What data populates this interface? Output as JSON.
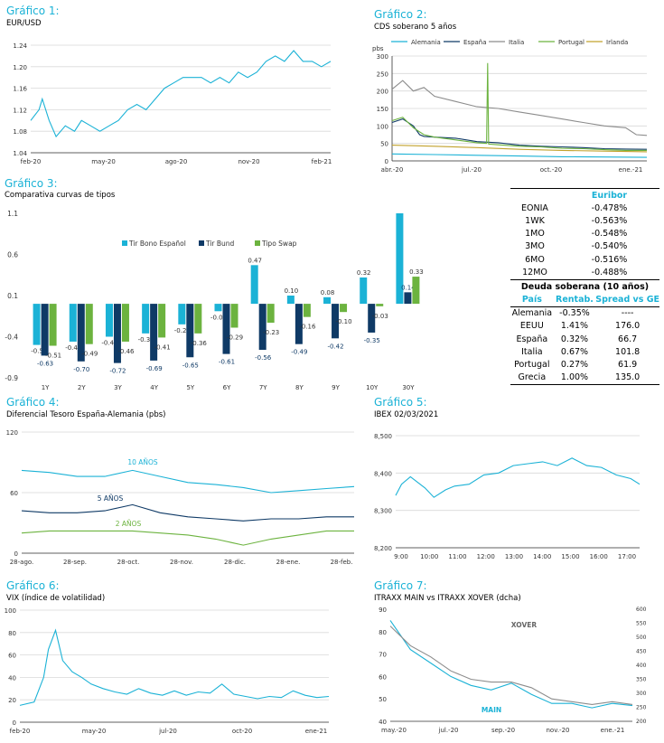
{
  "colors": {
    "accent": "#1bb2d6",
    "navy": "#0f3a66",
    "green": "#6cb33f",
    "grid": "#d9d9d9",
    "axis": "#333333"
  },
  "g1": {
    "title": "Gráfico 1:",
    "subtitle": "EUR/USD"
  },
  "g2": {
    "title": "Gráfico 2:",
    "subtitle": "CDS soberano 5 años",
    "unit": "pbs"
  },
  "g3": {
    "title": "Gráfico 3:",
    "subtitle": "Comparativa curvas de tipos"
  },
  "g4": {
    "title": "Gráfico 4:",
    "subtitle": "Diferencial Tesoro España-Alemania (pbs)"
  },
  "g5": {
    "title": "Gráfico 5:",
    "subtitle": "IBEX 02/03/2021"
  },
  "g6": {
    "title": "Gráfico 6:",
    "subtitle": "VIX (índice de volatilidad)"
  },
  "g7": {
    "title": "Gráfico 7:",
    "subtitle": "ITRAXX MAIN vs ITRAXX XOVER (dcha)"
  },
  "table": {
    "euribor_header": "Euribor",
    "euribor": [
      {
        "label": "EONIA",
        "value": "-0.478%"
      },
      {
        "label": "1WK",
        "value": "-0.563%"
      },
      {
        "label": "1MO",
        "value": "-0.548%"
      },
      {
        "label": "3MO",
        "value": "-0.540%"
      },
      {
        "label": "6MO",
        "value": "-0.516%"
      },
      {
        "label": "12MO",
        "value": "-0.488%"
      }
    ],
    "deuda_header": "Deuda soberana (10 años)",
    "cols": [
      "País",
      "Rentab.",
      "Spread vs GE"
    ],
    "deuda": [
      {
        "pais": "Alemania",
        "rent": "-0.35%",
        "spread": "----"
      },
      {
        "pais": "EEUU",
        "rent": "1.41%",
        "spread": "176.0"
      },
      {
        "pais": "España",
        "rent": "0.32%",
        "spread": "66.7"
      },
      {
        "pais": "Italia",
        "rent": "0.67%",
        "spread": "101.8"
      },
      {
        "pais": "Portugal",
        "rent": "0.27%",
        "spread": "61.9"
      },
      {
        "pais": "Grecia",
        "rent": "1.00%",
        "spread": "135.0"
      }
    ]
  },
  "chart_data": [
    {
      "id": "g1",
      "type": "line",
      "title": "EUR/USD",
      "xticks": [
        "feb-20",
        "may-20",
        "ago-20",
        "nov-20",
        "feb-21"
      ],
      "ylim": [
        1.04,
        1.24
      ],
      "yticks": [
        "1.04",
        "1.08",
        "1.12",
        "1.16",
        "1.20",
        "1.24"
      ],
      "series": [
        {
          "color": "#1bb2d6",
          "x": [
            0,
            1.8,
            2.5,
            4,
            5.5,
            7.5,
            9.5,
            11,
            13,
            15,
            17,
            19,
            21,
            23,
            25,
            27,
            29,
            31,
            33,
            35,
            37,
            39,
            41,
            43,
            45,
            47,
            49,
            51,
            53,
            55,
            57,
            59,
            61,
            63,
            65
          ],
          "values": [
            1.1,
            1.12,
            1.14,
            1.1,
            1.07,
            1.09,
            1.08,
            1.1,
            1.09,
            1.08,
            1.09,
            1.1,
            1.12,
            1.13,
            1.12,
            1.14,
            1.16,
            1.17,
            1.18,
            1.18,
            1.18,
            1.17,
            1.18,
            1.17,
            1.19,
            1.18,
            1.19,
            1.21,
            1.22,
            1.21,
            1.23,
            1.21,
            1.21,
            1.2,
            1.21
          ]
        }
      ]
    },
    {
      "id": "g2",
      "type": "line",
      "title": "CDS soberano 5 años",
      "xticks": [
        "abr.-20",
        "jul.-20",
        "oct.-20",
        "ene.-21"
      ],
      "ylim": [
        0,
        300
      ],
      "yticks": [
        "0",
        "50",
        "100",
        "150",
        "200",
        "250",
        "300"
      ],
      "series": [
        {
          "name": "Alemania",
          "color": "#1bb2d6",
          "x": [
            0,
            2,
            4,
            6,
            8,
            10,
            12
          ],
          "values": [
            20,
            18,
            16,
            14,
            12,
            11,
            10
          ]
        },
        {
          "name": "España",
          "color": "#0f3a66",
          "x": [
            0,
            0.5,
            1,
            1.3,
            1.5,
            2,
            3,
            4,
            5,
            6,
            7,
            8,
            9,
            10,
            11,
            12
          ],
          "values": [
            110,
            120,
            100,
            75,
            70,
            68,
            65,
            55,
            52,
            45,
            42,
            40,
            38,
            35,
            34,
            33
          ]
        },
        {
          "name": "Italia",
          "color": "#8c8c8c",
          "x": [
            0,
            0.5,
            1,
            1.5,
            2,
            3,
            4,
            5,
            6,
            7,
            8,
            9,
            10,
            11,
            11.5,
            12
          ],
          "values": [
            205,
            230,
            200,
            210,
            185,
            170,
            155,
            150,
            140,
            130,
            120,
            110,
            100,
            95,
            75,
            73
          ]
        },
        {
          "name": "Portugal",
          "color": "#6cb33f",
          "x": [
            0,
            0.5,
            1,
            1.5,
            2,
            3,
            4,
            4.45,
            4.5,
            4.55,
            5,
            6,
            7,
            8,
            9,
            10,
            11,
            12
          ],
          "values": [
            115,
            125,
            95,
            75,
            68,
            60,
            52,
            50,
            280,
            48,
            46,
            42,
            40,
            36,
            35,
            32,
            30,
            30
          ]
        },
        {
          "name": "Irlanda",
          "color": "#c2a22c",
          "x": [
            0,
            2,
            4,
            6,
            8,
            10,
            12
          ],
          "values": [
            45,
            42,
            38,
            33,
            30,
            28,
            26
          ]
        }
      ]
    },
    {
      "id": "g3",
      "type": "bar",
      "title": "Comparativa curvas de tipos",
      "categories": [
        "1Y",
        "2Y",
        "3Y",
        "4Y",
        "5Y",
        "6Y",
        "7Y",
        "8Y",
        "9Y",
        "10Y",
        "30Y"
      ],
      "ylim": [
        -0.9,
        1.1
      ],
      "yticks": [
        "-0.9",
        "-0.4",
        "0.1",
        "0.6",
        "1.1"
      ],
      "series": [
        {
          "name": "Tir Bono Español",
          "color": "#1bb2d6",
          "values": [
            -0.5,
            -0.46,
            -0.4,
            -0.36,
            -0.25,
            -0.09,
            0.47,
            0.1,
            0.08,
            0.32,
            1.1
          ]
        },
        {
          "name": "Tir Bund",
          "color": "#0f3a66",
          "values": [
            -0.63,
            -0.7,
            -0.72,
            -0.69,
            -0.65,
            -0.61,
            -0.56,
            -0.49,
            -0.42,
            -0.35,
            0.14
          ]
        },
        {
          "name": "Tipo Swap",
          "color": "#6cb33f",
          "values": [
            -0.51,
            -0.49,
            -0.46,
            -0.41,
            -0.36,
            -0.29,
            -0.23,
            -0.16,
            -0.1,
            -0.03,
            0.33
          ]
        }
      ],
      "labels": {
        "esp": [
          "-0.5",
          "-0.46",
          "-0.40",
          "-0.36",
          "-0.25",
          "-0.09",
          "0.47",
          "0.10",
          "0.08",
          "0.32",
          ""
        ],
        "bund": [
          "-0.63",
          "-0.70",
          "-0.72",
          "-0.69",
          "-0.65",
          "-0.61",
          "-0.56",
          "-0.49",
          "-0.42",
          "-0.35",
          "0.14"
        ],
        "swap": [
          "-0.51",
          "-0.49",
          "-0.46",
          "-0.41",
          "-0.36",
          "-0.29",
          "-0.23",
          "-0.16",
          "-0.10",
          "-0.03",
          "0.33"
        ]
      }
    },
    {
      "id": "g4",
      "type": "line",
      "title": "Diferencial Tesoro España-Alemania (pbs)",
      "xticks": [
        "28-ago.",
        "28-sep.",
        "28-oct.",
        "28-nov.",
        "28-dic.",
        "28-ene.",
        "28-feb."
      ],
      "ylim": [
        0,
        120
      ],
      "yticks": [
        "0",
        "60",
        "120"
      ],
      "series": [
        {
          "name": "10 AÑOS",
          "color": "#1bb2d6",
          "x": [
            0,
            0.5,
            1,
            1.5,
            2,
            2.5,
            3,
            3.5,
            4,
            4.5,
            5,
            5.5,
            6
          ],
          "values": [
            82,
            80,
            76,
            76,
            82,
            76,
            70,
            68,
            65,
            60,
            62,
            64,
            66
          ]
        },
        {
          "name": "5 AÑOS",
          "color": "#0f3a66",
          "x": [
            0,
            0.5,
            1,
            1.5,
            2,
            2.5,
            3,
            3.5,
            4,
            4.5,
            5,
            5.5,
            6
          ],
          "values": [
            42,
            40,
            40,
            42,
            48,
            40,
            36,
            34,
            32,
            34,
            34,
            36,
            36
          ]
        },
        {
          "name": "2 AÑOS",
          "color": "#6cb33f",
          "x": [
            0,
            0.5,
            1,
            1.5,
            2,
            2.5,
            3,
            3.5,
            4,
            4.5,
            5,
            5.5,
            6
          ],
          "values": [
            20,
            22,
            22,
            22,
            22,
            20,
            18,
            14,
            8,
            14,
            18,
            22,
            22
          ]
        }
      ]
    },
    {
      "id": "g5",
      "type": "line",
      "title": "IBEX 02/03/2021",
      "xticks": [
        "9:00",
        "10:00",
        "11:00",
        "12:00",
        "13:00",
        "14:00",
        "15:00",
        "16:00",
        "17:00"
      ],
      "ylim": [
        8200,
        8500
      ],
      "yticks": [
        "8,200",
        "8,300",
        "8,400",
        "8,500"
      ],
      "series": [
        {
          "color": "#1bb2d6",
          "x": [
            0,
            0.2,
            0.5,
            1,
            1.3,
            1.7,
            2,
            2.5,
            3,
            3.5,
            4,
            4.5,
            5,
            5.5,
            6,
            6.5,
            7,
            7.5,
            8,
            8.3
          ],
          "values": [
            8340,
            8370,
            8390,
            8360,
            8335,
            8355,
            8365,
            8370,
            8395,
            8400,
            8420,
            8425,
            8430,
            8420,
            8440,
            8420,
            8415,
            8395,
            8385,
            8370
          ]
        }
      ]
    },
    {
      "id": "g6",
      "type": "line",
      "title": "VIX (índice de volatilidad)",
      "xticks": [
        "feb-20",
        "may-20",
        "jul-20",
        "oct-20",
        "ene-21"
      ],
      "ylim": [
        0,
        100
      ],
      "yticks": [
        "0",
        "20",
        "40",
        "60",
        "80",
        "100"
      ],
      "series": [
        {
          "color": "#1bb2d6",
          "x": [
            0,
            0.6,
            1,
            1.2,
            1.5,
            1.8,
            2.2,
            2.6,
            3,
            3.5,
            4,
            4.5,
            5,
            5.5,
            6,
            6.5,
            7,
            7.5,
            8,
            8.5,
            9,
            9.5,
            10,
            10.5,
            11,
            11.5,
            12,
            12.5,
            13
          ],
          "values": [
            15,
            18,
            40,
            65,
            82,
            55,
            45,
            40,
            34,
            30,
            27,
            25,
            30,
            26,
            24,
            28,
            24,
            27,
            26,
            34,
            25,
            23,
            21,
            23,
            22,
            28,
            24,
            22,
            23
          ]
        }
      ]
    },
    {
      "id": "g7",
      "type": "line",
      "title": "ITRAXX MAIN vs ITRAXX XOVER (dcha)",
      "xticks": [
        "may.-20",
        "jul.-20",
        "sep.-20",
        "nov.-20",
        "ene.-21"
      ],
      "ylim": [
        40,
        90
      ],
      "yticks": [
        "40",
        "50",
        "60",
        "70",
        "80",
        "90"
      ],
      "y2lim": [
        200,
        600
      ],
      "y2ticks": [
        "200",
        "250",
        "300",
        "350",
        "400",
        "450",
        "500",
        "550",
        "600"
      ],
      "series": [
        {
          "name": "MAIN",
          "color": "#1bb2d6",
          "x": [
            0,
            1,
            2,
            3,
            4,
            5,
            6,
            7,
            8,
            9,
            10,
            11,
            12
          ],
          "values": [
            85,
            72,
            66,
            60,
            56,
            54,
            57,
            52,
            48,
            48,
            46,
            48,
            47
          ]
        },
        {
          "name": "XOVER",
          "color": "#8c8c8c",
          "axis": "right",
          "x": [
            0,
            1,
            2,
            3,
            4,
            5,
            6,
            7,
            8,
            9,
            10,
            11,
            12
          ],
          "values": [
            540,
            470,
            430,
            380,
            350,
            340,
            340,
            320,
            280,
            270,
            260,
            270,
            260
          ]
        }
      ]
    }
  ]
}
